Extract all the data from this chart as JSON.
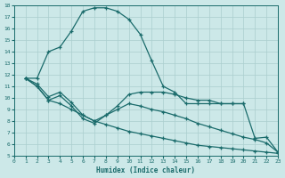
{
  "xlabel": "Humidex (Indice chaleur)",
  "xlim": [
    0,
    23
  ],
  "ylim": [
    5,
    18
  ],
  "xticks": [
    0,
    1,
    2,
    3,
    4,
    5,
    6,
    7,
    8,
    9,
    10,
    11,
    12,
    13,
    14,
    15,
    16,
    17,
    18,
    19,
    20,
    21,
    22,
    23
  ],
  "yticks": [
    5,
    6,
    7,
    8,
    9,
    10,
    11,
    12,
    13,
    14,
    15,
    16,
    17,
    18
  ],
  "bg_color": "#cce8e8",
  "grid_color": "#aacece",
  "line_color": "#1a6b6b",
  "line1_x": [
    1,
    2,
    3,
    4,
    5,
    6,
    7,
    8,
    9,
    10,
    11,
    12,
    13,
    14,
    15,
    16,
    17,
    18,
    19,
    20
  ],
  "line1_y": [
    11.7,
    11.7,
    14.0,
    14.4,
    15.8,
    17.5,
    17.8,
    17.8,
    17.5,
    16.8,
    15.5,
    13.2,
    11.0,
    10.5,
    9.5,
    9.5,
    9.5,
    9.5,
    9.5,
    9.5
  ],
  "line2_x": [
    1,
    2,
    3,
    4,
    5,
    6,
    7,
    8,
    9,
    10,
    11,
    12,
    13,
    14,
    15,
    16,
    17,
    18,
    19,
    20,
    21,
    22,
    23
  ],
  "line2_y": [
    11.7,
    11.2,
    10.1,
    10.5,
    9.6,
    8.5,
    8.0,
    8.5,
    9.3,
    10.3,
    10.5,
    10.5,
    10.5,
    10.3,
    10.0,
    9.8,
    9.8,
    9.5,
    9.5,
    9.5,
    6.5,
    6.6,
    5.3
  ],
  "line3_x": [
    1,
    2,
    3,
    4,
    5,
    6,
    7,
    8,
    9,
    10,
    11,
    12,
    13,
    14,
    15,
    16,
    17,
    18,
    19,
    20,
    21,
    22,
    23
  ],
  "line3_y": [
    11.7,
    11.0,
    9.8,
    10.2,
    9.3,
    8.2,
    7.8,
    8.5,
    9.0,
    9.5,
    9.3,
    9.0,
    8.8,
    8.5,
    8.2,
    7.8,
    7.5,
    7.2,
    6.9,
    6.6,
    6.4,
    6.1,
    5.3
  ],
  "line4_x": [
    1,
    2,
    3,
    4,
    5,
    6,
    7,
    8,
    9,
    10,
    11,
    12,
    13,
    14,
    15,
    16,
    17,
    18,
    19,
    20,
    21,
    22,
    23
  ],
  "line4_y": [
    11.7,
    11.0,
    9.8,
    9.5,
    9.0,
    8.5,
    8.0,
    7.7,
    7.4,
    7.1,
    6.9,
    6.7,
    6.5,
    6.3,
    6.1,
    5.9,
    5.8,
    5.7,
    5.6,
    5.5,
    5.4,
    5.3,
    5.2
  ]
}
